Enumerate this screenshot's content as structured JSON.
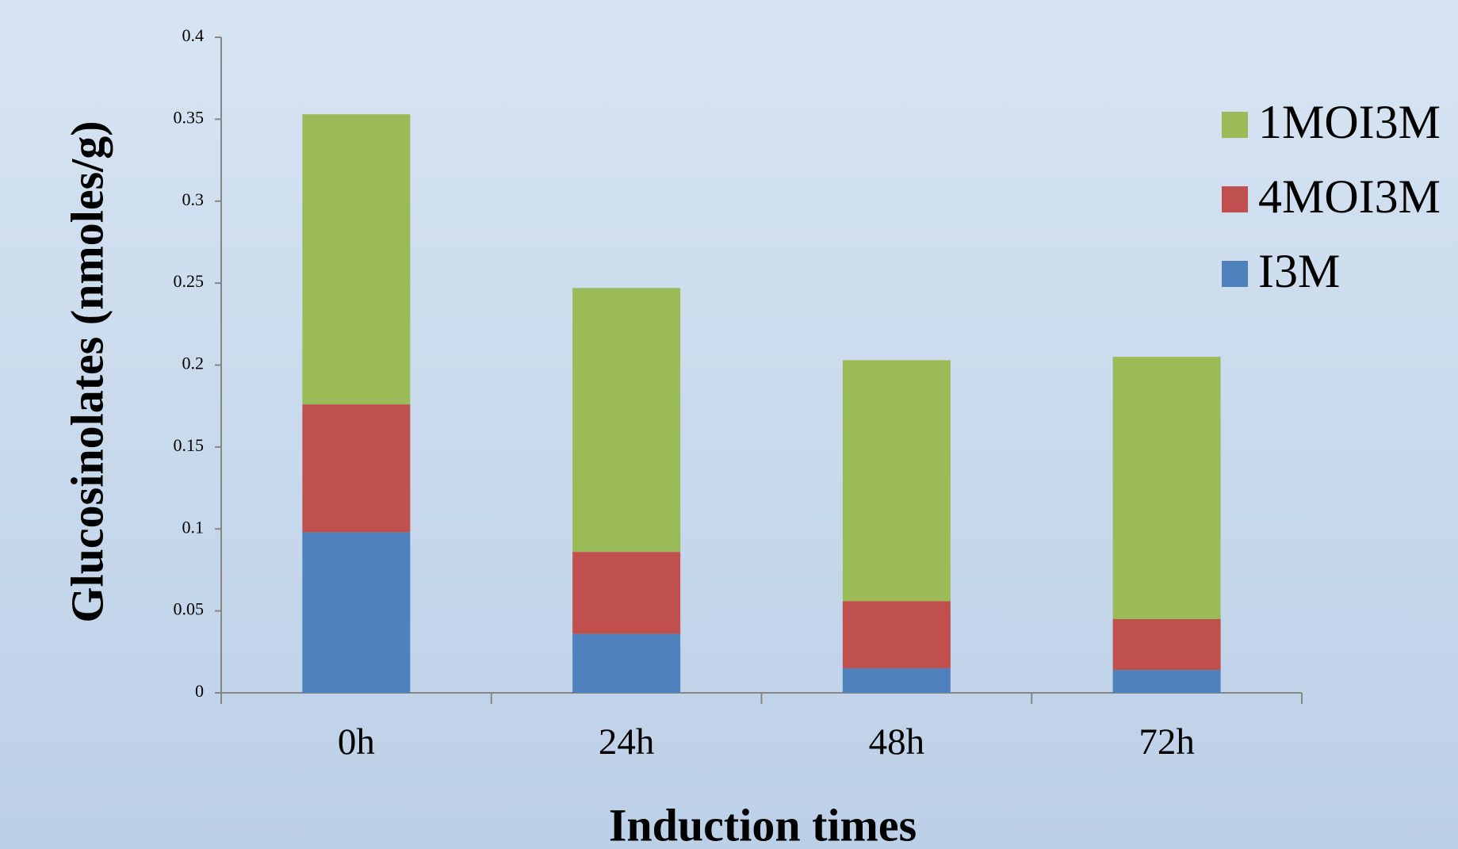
{
  "chart_data": {
    "type": "stacked-bar",
    "x_label": "Induction times",
    "y_label": "Glucosinolates (nmoles/g)",
    "categories": [
      "0h",
      "24h",
      "48h",
      "72h"
    ],
    "series": [
      {
        "name": "I3M",
        "color": "#4f81bd",
        "values": [
          0.098,
          0.036,
          0.015,
          0.014
        ]
      },
      {
        "name": "4MOI3M",
        "color": "#c0504d",
        "values": [
          0.078,
          0.05,
          0.041,
          0.031
        ]
      },
      {
        "name": "1MOI3M",
        "color": "#9bbb59",
        "values": [
          0.177,
          0.161,
          0.147,
          0.16
        ]
      }
    ],
    "ylim": [
      0,
      0.4
    ],
    "yticks": [
      0,
      0.05,
      0.1,
      0.15,
      0.2,
      0.25,
      0.3,
      0.35,
      0.4
    ],
    "grid": false,
    "legend": "right"
  }
}
